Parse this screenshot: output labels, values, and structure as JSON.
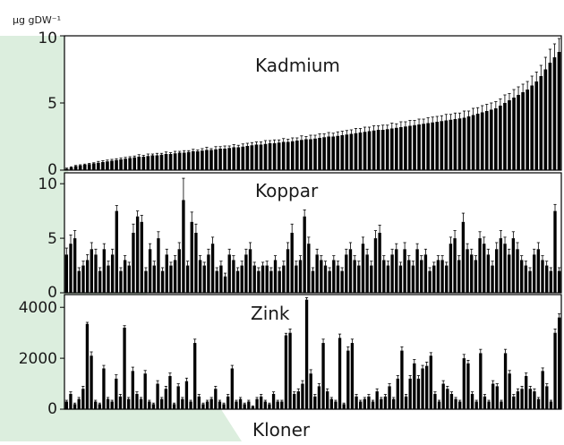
{
  "chart_data": [
    {
      "type": "bar",
      "title": "Kadmium",
      "ylabel": "µg gDW⁻¹",
      "ylim": [
        0,
        10
      ],
      "yticks": [
        0,
        5,
        10
      ],
      "error_bars": true,
      "values": [
        0.1,
        0.2,
        0.3,
        0.35,
        0.4,
        0.45,
        0.5,
        0.55,
        0.6,
        0.65,
        0.7,
        0.75,
        0.8,
        0.85,
        0.9,
        0.95,
        1.0,
        1.0,
        1.05,
        1.1,
        1.1,
        1.15,
        1.2,
        1.2,
        1.25,
        1.3,
        1.3,
        1.35,
        1.4,
        1.4,
        1.45,
        1.5,
        1.5,
        1.55,
        1.6,
        1.6,
        1.65,
        1.7,
        1.7,
        1.75,
        1.8,
        1.85,
        1.9,
        1.9,
        1.95,
        2.0,
        2.0,
        2.05,
        2.1,
        2.1,
        2.15,
        2.2,
        2.25,
        2.3,
        2.3,
        2.35,
        2.4,
        2.45,
        2.5,
        2.5,
        2.55,
        2.6,
        2.65,
        2.7,
        2.75,
        2.8,
        2.85,
        2.9,
        2.95,
        3.0,
        3.0,
        3.05,
        3.1,
        3.15,
        3.2,
        3.25,
        3.3,
        3.35,
        3.4,
        3.45,
        3.5,
        3.55,
        3.6,
        3.65,
        3.7,
        3.75,
        3.8,
        3.85,
        3.9,
        4.0,
        4.1,
        4.2,
        4.3,
        4.4,
        4.5,
        4.6,
        4.8,
        5.0,
        5.2,
        5.4,
        5.6,
        5.8,
        6.0,
        6.3,
        6.6,
        7.0,
        7.5,
        8.0,
        8.4,
        8.8
      ],
      "errors": [
        0.05,
        0.05,
        0.05,
        0.05,
        0.05,
        0.05,
        0.05,
        0.1,
        0.1,
        0.1,
        0.1,
        0.1,
        0.1,
        0.1,
        0.1,
        0.1,
        0.15,
        0.1,
        0.15,
        0.1,
        0.15,
        0.1,
        0.15,
        0.1,
        0.15,
        0.1,
        0.15,
        0.1,
        0.15,
        0.1,
        0.15,
        0.2,
        0.1,
        0.2,
        0.15,
        0.2,
        0.15,
        0.2,
        0.15,
        0.2,
        0.2,
        0.2,
        0.2,
        0.2,
        0.25,
        0.2,
        0.25,
        0.2,
        0.25,
        0.2,
        0.25,
        0.2,
        0.3,
        0.2,
        0.3,
        0.25,
        0.3,
        0.25,
        0.3,
        0.25,
        0.3,
        0.3,
        0.3,
        0.3,
        0.35,
        0.3,
        0.35,
        0.3,
        0.35,
        0.3,
        0.35,
        0.3,
        0.4,
        0.3,
        0.4,
        0.35,
        0.4,
        0.35,
        0.4,
        0.35,
        0.4,
        0.4,
        0.4,
        0.4,
        0.45,
        0.4,
        0.45,
        0.4,
        0.5,
        0.4,
        0.5,
        0.45,
        0.5,
        0.5,
        0.5,
        0.5,
        0.5,
        0.6,
        0.5,
        0.6,
        0.6,
        0.6,
        0.6,
        0.7,
        0.7,
        0.8,
        0.9,
        1.0,
        1.0,
        1.0
      ]
    },
    {
      "type": "bar",
      "title": "Koppar",
      "ylim": [
        0,
        11
      ],
      "yticks": [
        0,
        5,
        10
      ],
      "error_bars": true,
      "values": [
        3.5,
        4.5,
        5.0,
        2.0,
        2.5,
        3.0,
        4.0,
        3.5,
        2.0,
        4.0,
        2.5,
        3.5,
        7.5,
        2.0,
        3.0,
        2.5,
        5.5,
        7.0,
        6.5,
        2.0,
        4.0,
        2.5,
        5.0,
        2.0,
        3.5,
        2.5,
        3.0,
        4.0,
        8.5,
        2.5,
        6.5,
        5.5,
        3.0,
        2.5,
        3.5,
        4.5,
        2.0,
        2.5,
        1.5,
        3.5,
        3.0,
        2.0,
        2.5,
        3.5,
        4.0,
        2.5,
        2.0,
        2.5,
        2.5,
        2.0,
        3.0,
        2.0,
        2.5,
        4.0,
        5.5,
        2.5,
        3.0,
        7.0,
        4.5,
        2.0,
        3.5,
        3.0,
        2.5,
        2.0,
        3.0,
        2.5,
        2.0,
        3.5,
        4.0,
        3.0,
        2.5,
        4.5,
        3.5,
        2.5,
        5.0,
        5.5,
        3.0,
        2.5,
        3.5,
        4.0,
        2.5,
        4.0,
        3.0,
        2.5,
        4.0,
        3.0,
        3.5,
        2.0,
        2.5,
        3.0,
        3.0,
        2.5,
        4.5,
        5.0,
        3.0,
        6.5,
        4.0,
        3.5,
        3.0,
        5.0,
        4.5,
        3.5,
        2.5,
        4.0,
        5.0,
        4.5,
        3.5,
        5.0,
        4.0,
        3.0,
        2.5,
        2.0,
        3.5,
        4.0,
        3.0,
        2.5,
        2.0,
        7.5,
        2.0
      ],
      "errors": [
        0.6,
        0.8,
        0.7,
        0.3,
        0.4,
        0.5,
        0.6,
        0.5,
        0.3,
        0.5,
        0.4,
        0.5,
        0.5,
        0.3,
        0.4,
        0.3,
        0.8,
        0.5,
        0.6,
        0.3,
        0.5,
        0.4,
        0.6,
        0.3,
        0.5,
        0.3,
        0.4,
        0.6,
        2.0,
        0.4,
        0.9,
        0.8,
        0.4,
        0.3,
        0.5,
        0.6,
        0.3,
        0.4,
        0.3,
        0.5,
        0.4,
        0.3,
        0.4,
        0.5,
        0.6,
        0.3,
        0.3,
        0.3,
        0.4,
        0.3,
        0.4,
        0.3,
        0.4,
        0.6,
        0.8,
        0.4,
        0.4,
        0.6,
        0.6,
        0.3,
        0.5,
        0.4,
        0.4,
        0.3,
        0.4,
        0.4,
        0.3,
        0.5,
        0.6,
        0.4,
        0.4,
        0.6,
        0.5,
        0.4,
        0.7,
        0.7,
        0.4,
        0.4,
        0.5,
        0.5,
        0.3,
        0.6,
        0.4,
        0.4,
        0.5,
        0.4,
        0.5,
        0.3,
        0.3,
        0.4,
        0.4,
        0.3,
        0.6,
        0.7,
        0.4,
        0.8,
        0.5,
        0.5,
        0.4,
        0.6,
        0.6,
        0.5,
        0.4,
        0.6,
        0.7,
        0.6,
        0.5,
        0.6,
        0.6,
        0.4,
        0.4,
        0.3,
        0.5,
        0.6,
        0.4,
        0.4,
        0.3,
        0.6,
        0.3
      ]
    },
    {
      "type": "bar",
      "title": "Zink",
      "xlabel": "Kloner",
      "ylim": [
        0,
        4500
      ],
      "yticks": [
        0,
        2000,
        4000
      ],
      "error_bars": true,
      "values": [
        300,
        600,
        200,
        400,
        800,
        3350,
        2100,
        300,
        200,
        1600,
        400,
        300,
        1200,
        500,
        3200,
        400,
        1500,
        600,
        400,
        1400,
        300,
        200,
        1000,
        400,
        800,
        1300,
        200,
        900,
        400,
        1100,
        300,
        2600,
        500,
        200,
        300,
        400,
        800,
        300,
        200,
        500,
        1600,
        300,
        400,
        200,
        300,
        100,
        400,
        500,
        300,
        200,
        600,
        300,
        300,
        2900,
        3000,
        600,
        700,
        1000,
        4300,
        1400,
        500,
        900,
        2600,
        700,
        400,
        300,
        2800,
        200,
        2300,
        2600,
        500,
        300,
        400,
        500,
        300,
        700,
        400,
        500,
        900,
        400,
        1200,
        2300,
        500,
        1200,
        1800,
        1200,
        1600,
        1700,
        2100,
        600,
        300,
        1000,
        800,
        600,
        400,
        300,
        2000,
        1800,
        600,
        300,
        2200,
        500,
        300,
        1000,
        900,
        300,
        2200,
        1400,
        500,
        700,
        800,
        1300,
        800,
        700,
        400,
        1500,
        900,
        300,
        3000,
        3600
      ],
      "errors": [
        50,
        80,
        40,
        60,
        100,
        60,
        150,
        50,
        40,
        120,
        60,
        50,
        150,
        80,
        80,
        60,
        150,
        80,
        60,
        120,
        50,
        40,
        120,
        60,
        100,
        120,
        40,
        100,
        60,
        120,
        50,
        150,
        80,
        40,
        50,
        60,
        100,
        50,
        40,
        80,
        120,
        50,
        60,
        40,
        50,
        30,
        60,
        80,
        50,
        40,
        80,
        50,
        50,
        80,
        150,
        80,
        100,
        120,
        80,
        150,
        80,
        100,
        150,
        100,
        60,
        50,
        150,
        40,
        150,
        150,
        80,
        50,
        60,
        80,
        50,
        100,
        60,
        80,
        100,
        60,
        120,
        150,
        80,
        120,
        150,
        120,
        120,
        150,
        120,
        80,
        50,
        120,
        100,
        80,
        60,
        50,
        150,
        120,
        80,
        50,
        150,
        80,
        50,
        120,
        100,
        50,
        150,
        120,
        80,
        100,
        100,
        120,
        100,
        100,
        60,
        120,
        100,
        50,
        150,
        150
      ]
    }
  ]
}
